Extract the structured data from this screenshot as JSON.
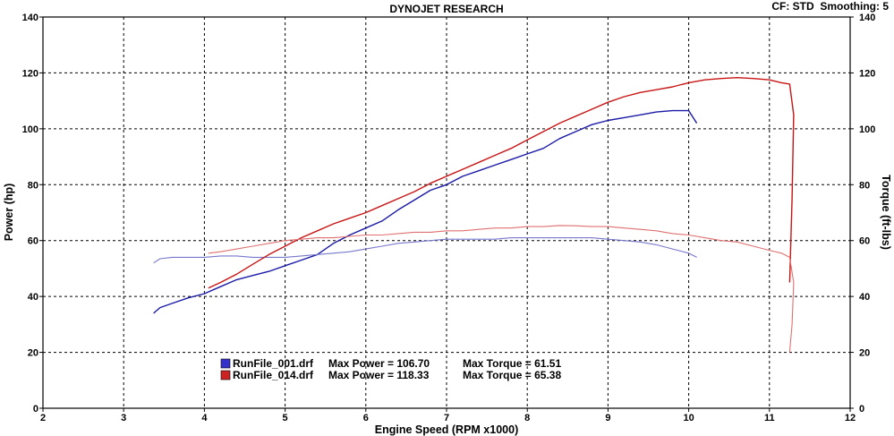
{
  "header": {
    "title": "DYNOJET RESEARCH",
    "settings": "CF: STD  Smoothing: 5"
  },
  "chart_data": {
    "type": "line",
    "title": "DYNOJET RESEARCH",
    "xlabel": "Engine Speed (RPM x1000)",
    "ylabel_left": "Power (hp)",
    "ylabel_right": "Torque (ft-lbs)",
    "xlim": [
      2,
      12
    ],
    "ylim": [
      0,
      140
    ],
    "x_ticks": [
      "2",
      "3",
      "4",
      "5",
      "6",
      "7",
      "8",
      "9",
      "10",
      "11",
      "12"
    ],
    "y_ticks": [
      "0",
      "20",
      "40",
      "60",
      "80",
      "100",
      "120",
      "140"
    ],
    "grid": true,
    "colors": {
      "run1": "#1a1aa6",
      "run1_light": "#7777cc",
      "run2": "#c81414",
      "run2_light": "#e07070"
    },
    "series": [
      {
        "name": "RunFile_001.drf",
        "measure": "power",
        "x": [
          3.37,
          3.45,
          3.6,
          3.8,
          4.0,
          4.2,
          4.4,
          4.6,
          4.8,
          5.0,
          5.2,
          5.4,
          5.6,
          5.8,
          6.0,
          6.2,
          6.4,
          6.6,
          6.8,
          7.0,
          7.2,
          7.4,
          7.6,
          7.8,
          8.0,
          8.2,
          8.4,
          8.6,
          8.8,
          9.0,
          9.2,
          9.4,
          9.6,
          9.8,
          10.0,
          10.1
        ],
        "y": [
          34,
          36,
          37.5,
          39.5,
          41,
          43.5,
          46,
          47.5,
          49,
          51,
          53,
          55,
          59,
          62,
          64.5,
          67,
          71,
          74.5,
          78,
          80,
          83,
          85,
          87,
          89,
          91,
          93,
          96.5,
          99,
          101.5,
          103,
          104,
          105,
          106,
          106.5,
          106.5,
          102
        ]
      },
      {
        "name": "RunFile_001.drf",
        "measure": "torque",
        "x": [
          3.37,
          3.45,
          3.6,
          3.8,
          4.0,
          4.2,
          4.4,
          4.6,
          4.8,
          5.0,
          5.2,
          5.4,
          5.6,
          5.8,
          6.0,
          6.2,
          6.4,
          6.6,
          6.8,
          7.0,
          7.2,
          7.4,
          7.6,
          7.8,
          8.0,
          8.2,
          8.4,
          8.6,
          8.8,
          9.0,
          9.2,
          9.4,
          9.6,
          9.8,
          10.0,
          10.1
        ],
        "y": [
          52,
          53.5,
          54,
          54,
          54,
          54.5,
          54.5,
          54,
          54,
          54,
          54.5,
          55,
          55.5,
          56,
          57,
          58,
          59,
          59.5,
          60,
          60.5,
          60.5,
          60.5,
          60.5,
          61,
          61,
          61,
          61,
          61,
          61,
          60.5,
          60,
          59.5,
          58.5,
          57,
          55.5,
          54
        ]
      },
      {
        "name": "RunFile_014.drf",
        "measure": "power",
        "x": [
          4.05,
          4.2,
          4.4,
          4.6,
          4.8,
          5.0,
          5.2,
          5.4,
          5.6,
          5.8,
          6.0,
          6.2,
          6.4,
          6.6,
          6.8,
          7.0,
          7.2,
          7.4,
          7.6,
          7.8,
          8.0,
          8.2,
          8.4,
          8.6,
          8.8,
          9.0,
          9.2,
          9.4,
          9.6,
          9.8,
          10.0,
          10.2,
          10.4,
          10.6,
          10.8,
          11.0,
          11.15,
          11.25,
          11.3,
          11.28,
          11.25
        ],
        "y": [
          43,
          45,
          48,
          51.5,
          55,
          58,
          61,
          63.5,
          66,
          68,
          70,
          72.5,
          75,
          77.5,
          80.5,
          83,
          85.5,
          88,
          90.5,
          93,
          96,
          99,
          102,
          104.5,
          107,
          109.5,
          111.5,
          113,
          114,
          115,
          116.5,
          117.5,
          118,
          118.3,
          118,
          117.5,
          116.5,
          116,
          105,
          75,
          45
        ]
      },
      {
        "name": "RunFile_014.drf",
        "measure": "torque",
        "x": [
          4.05,
          4.2,
          4.4,
          4.6,
          4.8,
          5.0,
          5.2,
          5.4,
          5.6,
          5.8,
          6.0,
          6.2,
          6.4,
          6.6,
          6.8,
          7.0,
          7.2,
          7.4,
          7.6,
          7.8,
          8.0,
          8.2,
          8.4,
          8.6,
          8.8,
          9.0,
          9.2,
          9.4,
          9.6,
          9.8,
          10.0,
          10.2,
          10.4,
          10.6,
          10.8,
          11.0,
          11.15,
          11.25,
          11.3,
          11.28,
          11.25
        ],
        "y": [
          55.5,
          56,
          57,
          58,
          59,
          60,
          60.5,
          61,
          61,
          61.5,
          62,
          62,
          62.5,
          63,
          63,
          63.5,
          63.5,
          64,
          64.5,
          64.5,
          65,
          65,
          65.4,
          65.3,
          65,
          65,
          64.5,
          64,
          63.5,
          62.5,
          62,
          61,
          60,
          59.5,
          58,
          56.5,
          55.5,
          54,
          45,
          30,
          20
        ]
      }
    ],
    "legend": {
      "placement": "bottom-left",
      "entries": [
        {
          "file": "RunFile_001.drf",
          "max_power_label": "Max Power = 106.70",
          "max_torque_label": "Max Torque = 61.51",
          "max_power": 106.7,
          "max_torque": 61.51,
          "color": "#3333cc"
        },
        {
          "file": "RunFile_014.drf",
          "max_power_label": "Max Power = 118.33",
          "max_torque_label": "Max Torque = 65.38",
          "max_power": 118.33,
          "max_torque": 65.38,
          "color": "#cc2222"
        }
      ]
    }
  }
}
